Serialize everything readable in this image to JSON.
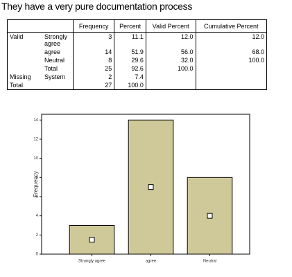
{
  "title": "They have a very pure documentation process",
  "table": {
    "columns": [
      "Frequency",
      "Percent",
      "Valid Percent",
      "Cumulative Percent"
    ],
    "rows": [
      {
        "group": "Valid",
        "label": "Strongly agree",
        "cells": [
          "3",
          "11.1",
          "12.0",
          "12.0"
        ]
      },
      {
        "label": "agree",
        "cells": [
          "14",
          "51.9",
          "56.0",
          "68.0"
        ]
      },
      {
        "label": "Neutral",
        "cells": [
          "8",
          "29.6",
          "32.0",
          "100.0"
        ]
      },
      {
        "label": "Total",
        "cells": [
          "25",
          "92.6",
          "100.0"
        ]
      },
      {
        "group": "Missing",
        "label": "System",
        "cells": [
          "2",
          "7.4"
        ]
      },
      {
        "group": "Total",
        "cells": [
          "27",
          "100.0"
        ]
      }
    ]
  },
  "chart_data": {
    "type": "bar",
    "y_label": "Frequency",
    "categories": [
      "Strongly agree",
      "agree",
      "Neutral"
    ],
    "values": [
      3,
      14,
      8
    ],
    "color": "#cfc999",
    "ylim": [
      0,
      14.6
    ],
    "yticks": [
      0,
      2,
      4,
      6,
      8,
      10,
      12,
      14
    ]
  }
}
